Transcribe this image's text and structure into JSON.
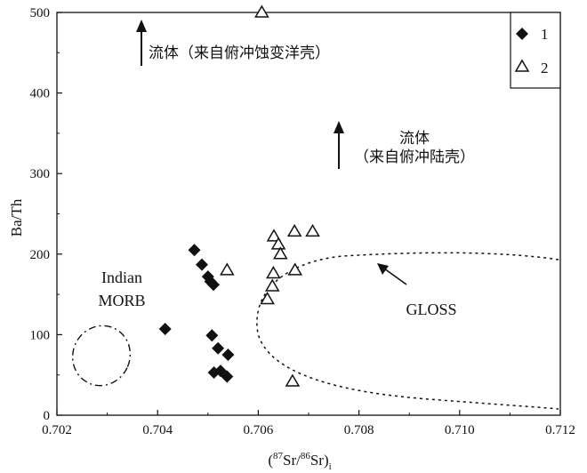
{
  "chart_data": {
    "type": "scatter",
    "xlabel": "(87Sr/86Sr)i",
    "ylabel": "Ba/Th",
    "xlim": [
      0.702,
      0.712
    ],
    "ylim": [
      0,
      500
    ],
    "xticks": [
      "0.702",
      "0.704",
      "0.706",
      "0.708",
      "0.710",
      "0.712"
    ],
    "yticks": [
      "0",
      "100",
      "200",
      "300",
      "400",
      "500"
    ],
    "grid": false,
    "legend_position": "top-right",
    "series": [
      {
        "name": "1",
        "marker": "filled-diamond",
        "color": "#111111",
        "points": [
          [
            0.70473,
            205
          ],
          [
            0.70488,
            187
          ],
          [
            0.705,
            172
          ],
          [
            0.70505,
            166
          ],
          [
            0.70511,
            162
          ],
          [
            0.70415,
            107
          ],
          [
            0.70508,
            99
          ],
          [
            0.7052,
            83
          ],
          [
            0.7054,
            75
          ],
          [
            0.70512,
            53
          ],
          [
            0.70525,
            55
          ],
          [
            0.70538,
            48
          ]
        ]
      },
      {
        "name": "2",
        "marker": "open-triangle",
        "color": "#111111",
        "points": [
          [
            0.70607,
            500
          ],
          [
            0.70538,
            180
          ],
          [
            0.70631,
            222
          ],
          [
            0.7064,
            212
          ],
          [
            0.70644,
            200
          ],
          [
            0.70672,
            228
          ],
          [
            0.70708,
            228
          ],
          [
            0.7063,
            176
          ],
          [
            0.70673,
            180
          ],
          [
            0.70628,
            160
          ],
          [
            0.70618,
            144
          ],
          [
            0.70668,
            42
          ]
        ]
      }
    ],
    "annotations": {
      "fluid_sediment": "流体（来自俯冲蚀变洋壳）",
      "fluid_crust_line1": "流体",
      "fluid_crust_line2": "（来自俯冲陆壳）",
      "indian_line1": "Indian",
      "indian_line2": "MORB",
      "gloss": "GLOSS"
    }
  }
}
